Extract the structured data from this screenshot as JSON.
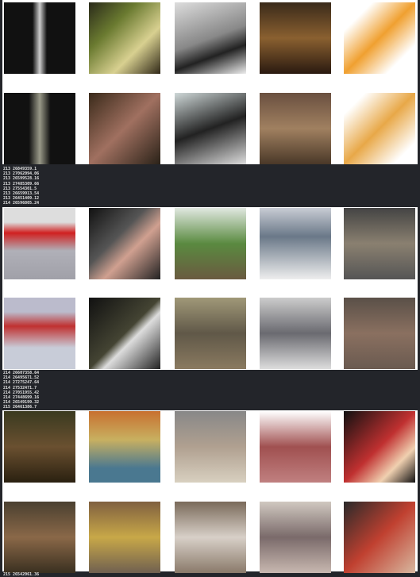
{
  "logs": [
    [
      "213 26849359.1",
      "213 27062094.06",
      "213 26599528.16",
      "213 27485309.66",
      "213 27554301.5",
      "213 26659913.54",
      "213 26451409.12",
      "214 26596805.24"
    ],
    [
      "214 26607358.64",
      "214 26495671.52",
      "214 27275247.64",
      "214 27532471.7",
      "214 27051955.42",
      "214 27448699.16",
      "214 26549199.32",
      "215 26461386.7"
    ],
    [
      "215 26542061.36"
    ]
  ]
}
